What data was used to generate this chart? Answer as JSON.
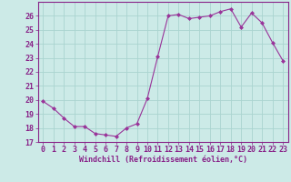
{
  "x": [
    0,
    1,
    2,
    3,
    4,
    5,
    6,
    7,
    8,
    9,
    10,
    11,
    12,
    13,
    14,
    15,
    16,
    17,
    18,
    19,
    20,
    21,
    22,
    23
  ],
  "y": [
    19.9,
    19.4,
    18.7,
    18.1,
    18.1,
    17.6,
    17.5,
    17.4,
    18.0,
    18.3,
    20.1,
    23.1,
    26.0,
    26.1,
    25.8,
    25.9,
    26.0,
    26.3,
    26.5,
    25.2,
    26.2,
    25.5,
    24.1,
    22.8
  ],
  "line_color": "#993399",
  "marker": "D",
  "markersize": 2.0,
  "bg_color": "#cceae7",
  "grid_color": "#aad4d0",
  "ylim": [
    17,
    27
  ],
  "yticks": [
    17,
    18,
    19,
    20,
    21,
    22,
    23,
    24,
    25,
    26
  ],
  "xlim": [
    -0.5,
    23.5
  ],
  "xticks": [
    0,
    1,
    2,
    3,
    4,
    5,
    6,
    7,
    8,
    9,
    10,
    11,
    12,
    13,
    14,
    15,
    16,
    17,
    18,
    19,
    20,
    21,
    22,
    23
  ],
  "xlabel": "Windchill (Refroidissement éolien,°C)",
  "xlabel_fontsize": 6.0,
  "tick_fontsize": 6.0,
  "tick_color": "#882288",
  "axis_color": "#882288",
  "figsize": [
    3.2,
    2.0
  ],
  "dpi": 100
}
